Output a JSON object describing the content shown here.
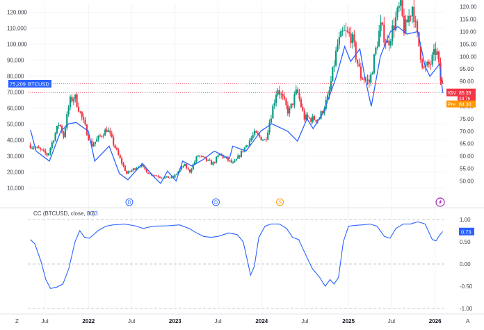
{
  "chart_data": {
    "type": "candlestick+line",
    "main_panel": {
      "left_axis": {
        "ticks": [
          10000,
          20000,
          30000,
          40000,
          50000,
          60000,
          70000,
          80000,
          90000,
          100000,
          110000,
          120000
        ],
        "ylim": [
          5000,
          125000
        ]
      },
      "right_axis": {
        "ticks": [
          50,
          55,
          60,
          65,
          70,
          75,
          80,
          85,
          90,
          95,
          100,
          105,
          110,
          115,
          120
        ],
        "ylim": [
          44,
          121
        ]
      },
      "series": [
        {
          "name": "BTCUSD",
          "kind": "candlestick",
          "axis": "left",
          "color_up": "#089981",
          "color_down": "#f23645",
          "anchors": [
            [
              "2021-05-01",
              37000
            ],
            [
              "2021-06-15",
              34000
            ],
            [
              "2021-07-20",
              30500
            ],
            [
              "2021-09-06",
              51000
            ],
            [
              "2021-09-25",
              42500
            ],
            [
              "2021-10-20",
              64000
            ],
            [
              "2021-11-10",
              67500
            ],
            [
              "2022-01-20",
              36500
            ],
            [
              "2022-03-28",
              47000
            ],
            [
              "2022-05-15",
              30000
            ],
            [
              "2022-06-18",
              19000
            ],
            [
              "2022-08-14",
              24500
            ],
            [
              "2022-09-20",
              19000
            ],
            [
              "2022-11-15",
              16500
            ],
            [
              "2022-12-31",
              16600
            ],
            [
              "2023-02-15",
              24500
            ],
            [
              "2023-03-10",
              20000
            ],
            [
              "2023-04-14",
              30500
            ],
            [
              "2023-06-15",
              25000
            ],
            [
              "2023-07-15",
              31000
            ],
            [
              "2023-09-11",
              25000
            ],
            [
              "2023-10-25",
              34500
            ],
            [
              "2023-12-08",
              44000
            ],
            [
              "2024-01-23",
              39500
            ],
            [
              "2024-03-14",
              73000
            ],
            [
              "2024-05-01",
              57000
            ],
            [
              "2024-06-05",
              71000
            ],
            [
              "2024-07-05",
              54000
            ],
            [
              "2024-08-05",
              53000
            ],
            [
              "2024-09-06",
              53500
            ],
            [
              "2024-10-15",
              67000
            ],
            [
              "2024-11-22",
              99000
            ],
            [
              "2024-12-17",
              107000
            ],
            [
              "2025-01-20",
              105000
            ],
            [
              "2025-02-28",
              80000
            ],
            [
              "2025-04-07",
              76000
            ],
            [
              "2025-05-22",
              111000
            ],
            [
              "2025-06-22",
              100000
            ],
            [
              "2025-08-14",
              124000
            ],
            [
              "2025-09-01",
              108000
            ],
            [
              "2025-10-06",
              125000
            ],
            [
              "2025-10-20",
              108000
            ],
            [
              "2025-11-21",
              84000
            ],
            [
              "2025-12-20",
              88000
            ],
            [
              "2026-01-14",
              97000
            ],
            [
              "2026-02-02",
              75209
            ]
          ]
        },
        {
          "name": "IGV",
          "kind": "line",
          "axis": "right",
          "color": "#2962ff",
          "points": [
            [
              "2021-05-01",
              70.5
            ],
            [
              "2021-05-25",
              62
            ],
            [
              "2021-07-20",
              58
            ],
            [
              "2021-09-06",
              70
            ],
            [
              "2021-10-10",
              73
            ],
            [
              "2021-11-10",
              73.5
            ],
            [
              "2021-12-31",
              70
            ],
            [
              "2022-01-27",
              58
            ],
            [
              "2022-03-29",
              64
            ],
            [
              "2022-05-11",
              53
            ],
            [
              "2022-06-16",
              50.5
            ],
            [
              "2022-08-16",
              57
            ],
            [
              "2022-09-30",
              52
            ],
            [
              "2022-11-01",
              49
            ],
            [
              "2022-11-30",
              54
            ],
            [
              "2023-01-05",
              50
            ],
            [
              "2023-02-02",
              58
            ],
            [
              "2023-03-13",
              56
            ],
            [
              "2023-04-28",
              58.5
            ],
            [
              "2023-06-15",
              62
            ],
            [
              "2023-08-18",
              59
            ],
            [
              "2023-09-01",
              64
            ],
            [
              "2023-10-27",
              62
            ],
            [
              "2023-12-28",
              70
            ],
            [
              "2024-02-12",
              73
            ],
            [
              "2024-04-19",
              70
            ],
            [
              "2024-05-31",
              66
            ],
            [
              "2024-07-10",
              75
            ],
            [
              "2024-08-05",
              71
            ],
            [
              "2024-09-20",
              78
            ],
            [
              "2024-11-11",
              92
            ],
            [
              "2024-12-16",
              104
            ],
            [
              "2025-01-10",
              98
            ],
            [
              "2025-02-18",
              103
            ],
            [
              "2025-03-10",
              92
            ],
            [
              "2025-04-07",
              80
            ],
            [
              "2025-05-15",
              100
            ],
            [
              "2025-06-27",
              110
            ],
            [
              "2025-07-28",
              112
            ],
            [
              "2025-09-05",
              109
            ],
            [
              "2025-10-20",
              110
            ],
            [
              "2025-11-20",
              96
            ],
            [
              "2025-12-10",
              92
            ],
            [
              "2026-01-20",
              97
            ],
            [
              "2026-02-02",
              85.39
            ]
          ]
        }
      ],
      "labels": {
        "btc_last": "75,209",
        "btc_name": "BTCUSD",
        "igv_name": "IGV",
        "igv_last": "85.39",
        "igv_countdown": "2d 7h",
        "pre_name": "Pre",
        "pre_value": "84.30"
      },
      "dividend_markers": [
        "2022-06-22",
        "2023-06-22"
      ],
      "split_markers": [
        "2024-03-18"
      ],
      "marker_letters": {
        "dividend": "D",
        "split": "S"
      }
    },
    "oscillator_panel": {
      "title": "CC (BTCUSD, close, 30)",
      "value_label": "0.73",
      "ylim": [
        -1.0,
        1.0
      ],
      "ticks": [
        "1.00",
        "0.50",
        "0.00",
        "-0.50",
        "-1.00"
      ],
      "tick_values": [
        1.0,
        0.5,
        0.0,
        -0.5,
        -1.0
      ],
      "color": "#2962ff",
      "points": [
        [
          "2021-05-01",
          0.55
        ],
        [
          "2021-05-20",
          0.45
        ],
        [
          "2021-06-15",
          0.05
        ],
        [
          "2021-07-05",
          -0.35
        ],
        [
          "2021-07-25",
          -0.55
        ],
        [
          "2021-08-20",
          -0.52
        ],
        [
          "2021-09-15",
          -0.45
        ],
        [
          "2021-10-10",
          -0.1
        ],
        [
          "2021-11-05",
          0.5
        ],
        [
          "2021-11-25",
          0.75
        ],
        [
          "2021-12-15",
          0.6
        ],
        [
          "2022-01-05",
          0.58
        ],
        [
          "2022-02-10",
          0.75
        ],
        [
          "2022-03-15",
          0.85
        ],
        [
          "2022-04-15",
          0.88
        ],
        [
          "2022-06-01",
          0.9
        ],
        [
          "2022-07-15",
          0.86
        ],
        [
          "2022-08-20",
          0.8
        ],
        [
          "2022-10-01",
          0.85
        ],
        [
          "2022-12-01",
          0.86
        ],
        [
          "2023-01-20",
          0.88
        ],
        [
          "2023-03-01",
          0.8
        ],
        [
          "2023-04-01",
          0.7
        ],
        [
          "2023-05-01",
          0.62
        ],
        [
          "2023-06-01",
          0.6
        ],
        [
          "2023-07-01",
          0.62
        ],
        [
          "2023-08-15",
          0.7
        ],
        [
          "2023-09-20",
          0.66
        ],
        [
          "2023-10-15",
          0.5
        ],
        [
          "2023-11-01",
          0.1
        ],
        [
          "2023-11-15",
          -0.25
        ],
        [
          "2023-12-01",
          -0.05
        ],
        [
          "2023-12-20",
          0.6
        ],
        [
          "2024-01-15",
          0.85
        ],
        [
          "2024-02-10",
          0.9
        ],
        [
          "2024-03-15",
          0.9
        ],
        [
          "2024-04-15",
          0.8
        ],
        [
          "2024-05-10",
          0.6
        ],
        [
          "2024-06-05",
          0.55
        ],
        [
          "2024-07-05",
          0.2
        ],
        [
          "2024-08-01",
          -0.1
        ],
        [
          "2024-09-01",
          -0.3
        ],
        [
          "2024-09-25",
          -0.5
        ],
        [
          "2024-10-15",
          -0.35
        ],
        [
          "2024-11-01",
          -0.45
        ],
        [
          "2024-11-20",
          -0.3
        ],
        [
          "2024-12-10",
          0.5
        ],
        [
          "2025-01-01",
          0.85
        ],
        [
          "2025-02-01",
          0.87
        ],
        [
          "2025-03-01",
          0.88
        ],
        [
          "2025-04-01",
          0.9
        ],
        [
          "2025-05-01",
          0.85
        ],
        [
          "2025-06-01",
          0.62
        ],
        [
          "2025-06-25",
          0.58
        ],
        [
          "2025-07-20",
          0.8
        ],
        [
          "2025-08-20",
          0.9
        ],
        [
          "2025-09-20",
          0.9
        ],
        [
          "2025-10-20",
          0.95
        ],
        [
          "2025-11-20",
          0.9
        ],
        [
          "2025-12-20",
          0.55
        ],
        [
          "2026-01-05",
          0.52
        ],
        [
          "2026-01-20",
          0.65
        ],
        [
          "2026-02-02",
          0.73
        ]
      ]
    },
    "x_axis": {
      "xlim": [
        "2021-04-20",
        "2026-02-12"
      ],
      "ticks": [
        {
          "date": "2021-07-01",
          "label": "Jul",
          "year": false
        },
        {
          "date": "2022-01-01",
          "label": "2022",
          "year": true
        },
        {
          "date": "2022-07-01",
          "label": "Jul",
          "year": false
        },
        {
          "date": "2023-01-01",
          "label": "2023",
          "year": true
        },
        {
          "date": "2023-07-01",
          "label": "Jul",
          "year": false
        },
        {
          "date": "2024-01-01",
          "label": "2024",
          "year": true
        },
        {
          "date": "2024-07-01",
          "label": "Jul",
          "year": false
        },
        {
          "date": "2025-01-01",
          "label": "2025",
          "year": true
        },
        {
          "date": "2025-07-01",
          "label": "Jul",
          "year": false
        },
        {
          "date": "2026-01-01",
          "label": "2026",
          "year": true
        }
      ],
      "corner_left": "Z",
      "corner_right": "A"
    },
    "grid": true
  },
  "colors": {
    "btc_line": "#2962ff",
    "price_line_red": "#f23645",
    "pre_orange": "#ff9800",
    "marker_blue": "#2962ff",
    "marker_orange": "#ff9800",
    "marker_purple": "#9c27b0",
    "grid": "#f0f3fa",
    "dash": "#b2b5be"
  }
}
